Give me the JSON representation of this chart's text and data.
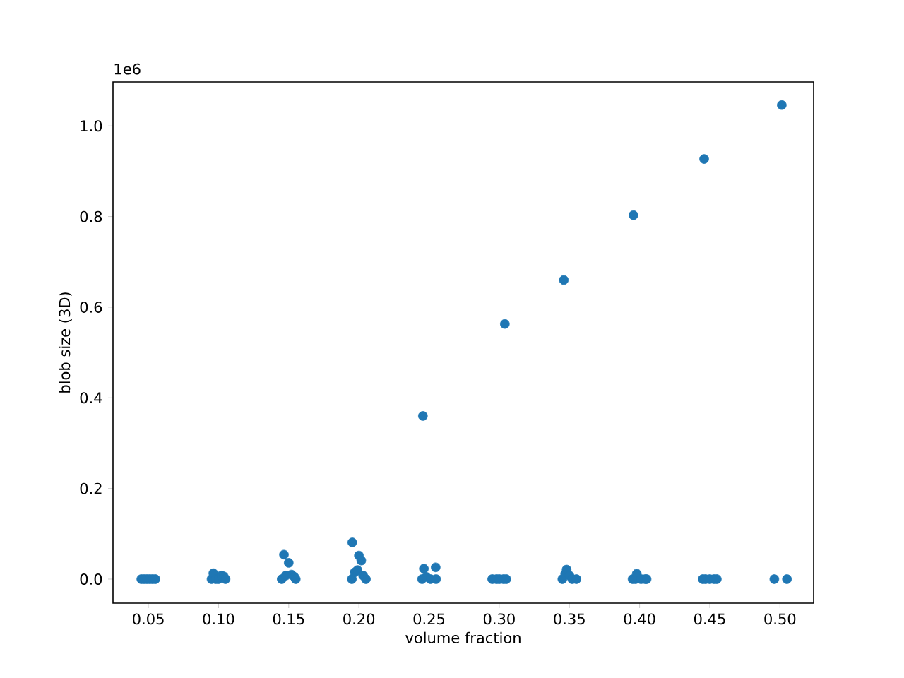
{
  "chart_data": {
    "type": "scatter",
    "xlabel": "volume fraction",
    "ylabel": "blob size (3D)",
    "annotations": [
      "1e6"
    ],
    "series": [
      {
        "color": "#1f77b4",
        "x": [
          0.045,
          0.047,
          0.049,
          0.051,
          0.053,
          0.055,
          0.095,
          0.0963,
          0.098,
          0.1,
          0.102,
          0.1037,
          0.105,
          0.145,
          0.1466,
          0.148,
          0.15,
          0.152,
          0.154,
          0.155,
          0.195,
          0.1953,
          0.197,
          0.199,
          0.2,
          0.2017,
          0.203,
          0.205,
          0.245,
          0.2456,
          0.2463,
          0.248,
          0.251,
          0.2547,
          0.255,
          0.295,
          0.298,
          0.3,
          0.303,
          0.304,
          0.305,
          0.345,
          0.346,
          0.347,
          0.348,
          0.35,
          0.352,
          0.355,
          0.395,
          0.3956,
          0.397,
          0.398,
          0.401,
          0.404,
          0.405,
          0.445,
          0.446,
          0.447,
          0.45,
          0.453,
          0.455,
          0.496,
          0.5013,
          0.505
        ],
        "values": [
          0,
          0,
          0,
          0,
          0,
          0,
          0,
          0.013,
          0,
          0,
          0.008,
          0.006,
          0,
          0,
          0.054,
          0.008,
          0.036,
          0.01,
          0.005,
          0,
          0,
          0.081,
          0.015,
          0.02,
          0.052,
          0.041,
          0.008,
          0,
          0,
          0.36,
          0.023,
          0.005,
          0,
          0.026,
          0,
          0,
          0,
          0,
          0,
          0.563,
          0,
          0,
          0.66,
          0.012,
          0.021,
          0.008,
          0,
          0,
          0,
          0.803,
          0,
          0.012,
          0,
          0,
          0,
          0,
          0.927,
          0,
          0,
          0,
          0,
          0,
          1.046,
          0
        ]
      }
    ],
    "marker": "circle",
    "xlim": [
      0.0248,
      0.524
    ],
    "ylim": [
      -0.053,
      1.097
    ],
    "xticks": [
      0.05,
      {
        "value": 0.1,
        "label": "0.10"
      },
      0.15,
      {
        "value": 0.2,
        "label": "0.20"
      },
      0.25,
      {
        "value": 0.3,
        "label": "0.30"
      },
      0.35,
      {
        "value": 0.4,
        "label": "0.40"
      },
      0.45,
      {
        "value": 0.5,
        "label": "0.50"
      }
    ],
    "yticks": [
      {
        "value": 0,
        "label": "0.0"
      },
      0.2,
      0.4,
      0.6,
      0.8,
      {
        "value": 1,
        "label": "1.0"
      }
    ]
  }
}
